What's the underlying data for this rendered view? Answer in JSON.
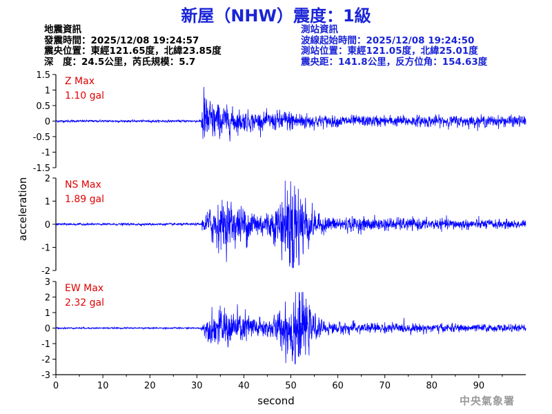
{
  "header": {
    "title": "新屋（NHW）震度：1級"
  },
  "earthquake_info": {
    "heading": "地震資訊",
    "origin_time": "發震時間：2025/12/08 19:24:57",
    "epicenter": "震央位置：東經121.65度，北緯23.85度",
    "depth_magnitude": "深　度：24.5公里，芮氏規模：5.7"
  },
  "station_info": {
    "heading": "測站資訊",
    "wave_start": "波線起始時間：2025/12/08 19:24:50",
    "station_location": "測站位置：東經121.05度，北緯25.01度",
    "distance_azimuth": "震央距：141.8公里，反方位角：154.63度"
  },
  "footer": {
    "agency": "中央氣象署"
  },
  "colors": {
    "trace": "#0000ff",
    "max_label": "#e00000",
    "title": "#1a24d6",
    "axis": "#000000"
  },
  "chart_data": [
    {
      "type": "line",
      "series": [
        {
          "name": "Z",
          "x_range": [
            0,
            100
          ],
          "onset_s": 31,
          "peak_s": 31.5,
          "max_amplitude": 1.1,
          "pre_event_noise": 0.03,
          "coda_level": 0.15
        }
      ],
      "max_label": "Z Max",
      "max_value_label": "1.10 gal",
      "xlim": [
        0,
        100
      ],
      "ylim": [
        -1.5,
        1.5
      ],
      "yticks": [
        -1.5,
        -1,
        -0.5,
        0,
        0.5,
        1,
        1.5
      ],
      "ytick_labels": [
        "-1.5",
        "-1",
        "-0.5",
        "0",
        "0.5",
        "1",
        "1.5"
      ]
    },
    {
      "type": "line",
      "series": [
        {
          "name": "NS",
          "x_range": [
            0,
            100
          ],
          "onset_s": 31,
          "peak_s": 50.5,
          "max_amplitude": 1.89,
          "pre_event_noise": 0.04,
          "coda_level": 0.25
        }
      ],
      "max_label": "NS Max",
      "max_value_label": "1.89 gal",
      "xlim": [
        0,
        100
      ],
      "ylim": [
        -2,
        2
      ],
      "yticks": [
        -2,
        -1,
        0,
        1,
        2
      ],
      "ytick_labels": [
        "-2",
        "-1",
        "0",
        "1",
        "2"
      ]
    },
    {
      "type": "line",
      "series": [
        {
          "name": "EW",
          "x_range": [
            0,
            100
          ],
          "onset_s": 31,
          "peak_s": 51,
          "max_amplitude": 2.32,
          "pre_event_noise": 0.04,
          "coda_level": 0.3
        }
      ],
      "max_label": "EW Max",
      "max_value_label": "2.32 gal",
      "xlim": [
        0,
        100
      ],
      "ylim": [
        -3,
        3
      ],
      "yticks": [
        -3,
        -2,
        -1,
        0,
        1,
        2,
        3
      ],
      "ytick_labels": [
        "-3",
        "-2",
        "-1",
        "0",
        "1",
        "2",
        "3"
      ]
    }
  ],
  "axes": {
    "ylabel": "acceleration",
    "xlabel": "second",
    "xticks": [
      0,
      10,
      20,
      30,
      40,
      50,
      60,
      70,
      80,
      90
    ],
    "xtick_labels": [
      "0",
      "10",
      "20",
      "30",
      "40",
      "50",
      "60",
      "70",
      "80",
      "90"
    ]
  }
}
